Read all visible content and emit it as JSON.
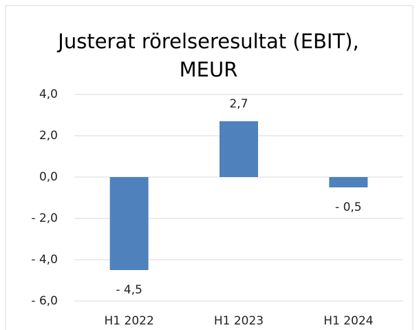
{
  "chart_data": {
    "type": "bar",
    "title": "Justerat rörelseresultat (EBIT), MEUR",
    "categories": [
      "H1 2022",
      "H1 2023",
      "H1 2024"
    ],
    "values": [
      -4.5,
      2.7,
      -0.5
    ],
    "value_labels": [
      "- 4,5",
      "2,7",
      "- 0,5"
    ],
    "color": "#4f81bd",
    "ylim": [
      -6,
      4
    ],
    "yticks": [
      {
        "value": -6,
        "label": "- 6,0"
      },
      {
        "value": -4,
        "label": "- 4,0"
      },
      {
        "value": -2,
        "label": "- 2,0"
      },
      {
        "value": 0,
        "label": "0,0"
      },
      {
        "value": 2,
        "label": "2,0"
      },
      {
        "value": 4,
        "label": "4,0"
      }
    ],
    "grid": true
  }
}
